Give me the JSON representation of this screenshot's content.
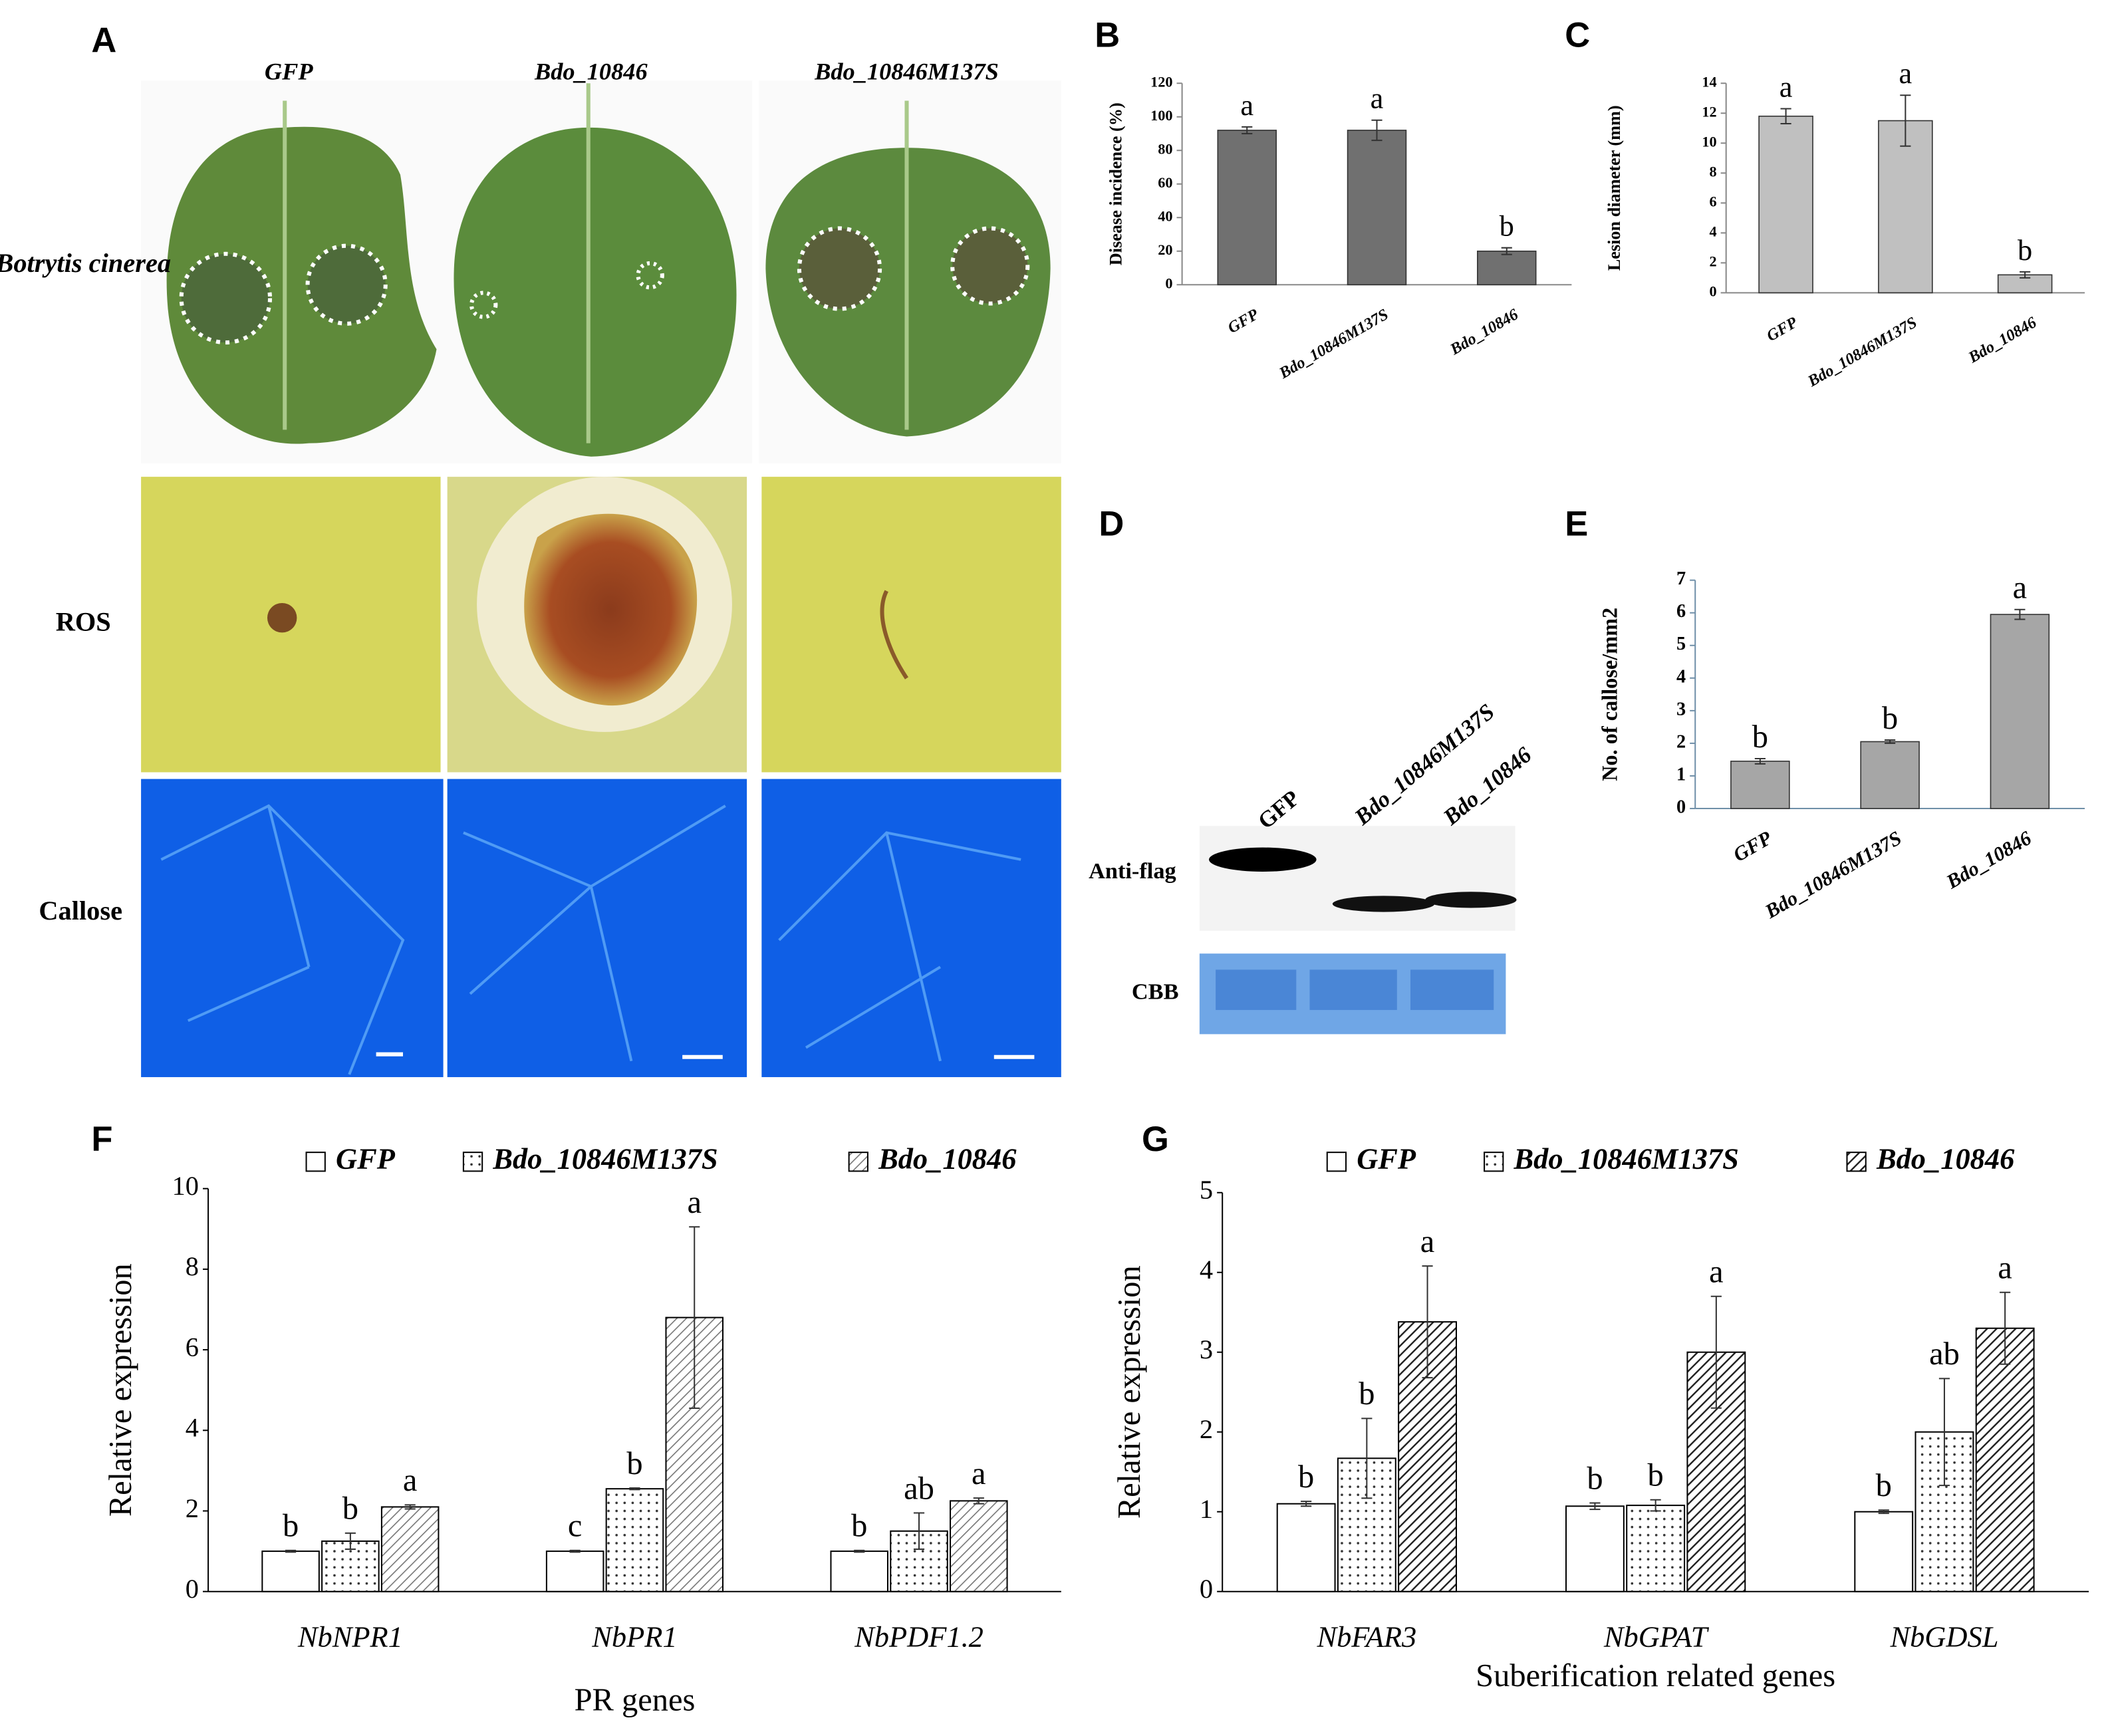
{
  "panel_a": {
    "panel": "A",
    "columns": [
      "GFP",
      "Bdo_10846",
      "Bdo_10846M137S"
    ],
    "rows": [
      "Botrytis cinerea",
      "ROS",
      "Callose"
    ]
  },
  "panel_d": {
    "panel": "D",
    "lanes": [
      "GFP",
      "Bdo_10846M137S",
      "Bdo_10846"
    ],
    "rows": [
      "Anti-flag",
      "CBB"
    ]
  },
  "chart_data": [
    {
      "type": "bar",
      "panel": "B",
      "ylabel": "Disease incidence (%)",
      "categories": [
        "GFP",
        "Bdo_10846M137S",
        "Bdo_10846"
      ],
      "values": [
        92,
        92,
        20
      ],
      "errors": [
        2,
        6,
        2
      ],
      "annotations": [
        "a",
        "a",
        "b"
      ],
      "color": "#707070",
      "ylim": [
        0,
        120
      ],
      "yticks": [
        0,
        20,
        40,
        60,
        80,
        100,
        120
      ]
    },
    {
      "type": "bar",
      "panel": "C",
      "ylabel": "Lesion diameter (mm)",
      "categories": [
        "GFP",
        "Bdo_10846M137S",
        "Bdo_10846"
      ],
      "values": [
        11.8,
        11.5,
        1.2
      ],
      "errors": [
        0.5,
        1.7,
        0.2
      ],
      "annotations": [
        "a",
        "a",
        "b"
      ],
      "color": "#c0c0c0",
      "ylim": [
        0,
        14
      ],
      "yticks": [
        0,
        2,
        4,
        6,
        8,
        10,
        12,
        14
      ]
    },
    {
      "type": "bar",
      "panel": "E",
      "ylabel": "No. of callose/mm2",
      "categories": [
        "GFP",
        "Bdo_10846M137S",
        "Bdo_10846"
      ],
      "values": [
        1.45,
        2.05,
        5.95
      ],
      "errors": [
        0.08,
        0.05,
        0.15
      ],
      "annotations": [
        "b",
        "b",
        "a"
      ],
      "color": "#a6a6a6",
      "ylim": [
        0,
        7
      ],
      "yticks": [
        0,
        1,
        2,
        3,
        4,
        5,
        6,
        7
      ]
    },
    {
      "type": "grouped-bar",
      "panel": "F",
      "ylabel": "Relative expression",
      "xlabel": "PR genes",
      "categories": [
        "NbNPR1",
        "NbPR1",
        "NbPDF1.2"
      ],
      "series": [
        {
          "name": "GFP",
          "pattern": "none",
          "values": [
            1,
            1,
            1
          ],
          "errors": [
            0.02,
            0.02,
            0.02
          ],
          "annotations": [
            "b",
            "c",
            "b"
          ]
        },
        {
          "name": "Bdo_10846M137S",
          "pattern": "dots",
          "values": [
            1.25,
            2.55,
            1.5
          ],
          "errors": [
            0.2,
            0.02,
            0.45
          ],
          "annotations": [
            "b",
            "b",
            "ab"
          ]
        },
        {
          "name": "Bdo_10846",
          "pattern": "hatch-light",
          "values": [
            2.1,
            6.8,
            2.25
          ],
          "errors": [
            0.05,
            2.25,
            0.07
          ],
          "annotations": [
            "a",
            "a",
            "a"
          ]
        }
      ],
      "ylim": [
        0,
        10
      ],
      "yticks": [
        0,
        2,
        4,
        6,
        8,
        10
      ]
    },
    {
      "type": "grouped-bar",
      "panel": "G",
      "ylabel": "Relative expression",
      "xlabel": "Suberification related genes",
      "categories": [
        "NbFAR3",
        "NbGPAT",
        "NbGDSL"
      ],
      "series": [
        {
          "name": "GFP",
          "pattern": "none",
          "values": [
            1.1,
            1.07,
            1.0
          ],
          "errors": [
            0.03,
            0.04,
            0.02
          ],
          "annotations": [
            "b",
            "b",
            "b"
          ]
        },
        {
          "name": "Bdo_10846M137S",
          "pattern": "dots",
          "values": [
            1.67,
            1.08,
            2.0
          ],
          "errors": [
            0.5,
            0.07,
            0.67
          ],
          "annotations": [
            "b",
            "b",
            "ab"
          ]
        },
        {
          "name": "Bdo_10846",
          "pattern": "hatch-dark",
          "values": [
            3.38,
            3.0,
            3.3
          ],
          "errors": [
            0.7,
            0.7,
            0.45
          ],
          "annotations": [
            "a",
            "a",
            "a"
          ]
        }
      ],
      "ylim": [
        0,
        5
      ],
      "yticks": [
        0,
        1,
        2,
        3,
        4,
        5
      ]
    }
  ]
}
